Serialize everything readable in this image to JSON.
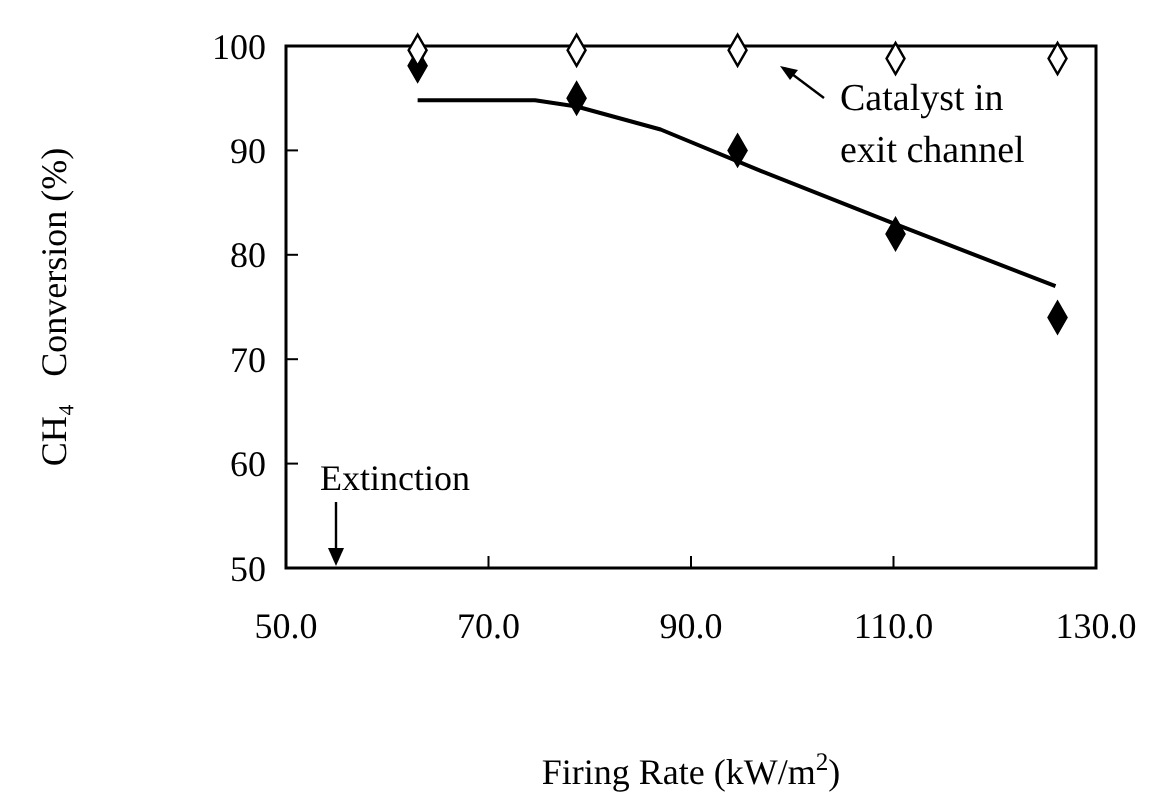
{
  "chart_data": {
    "type": "scatter",
    "xlabel": "Firing Rate (kW/m$^{2}$)",
    "ylabel": "CH₄   Conversion (%)",
    "xlim": [
      50,
      130
    ],
    "xticks": [
      {
        "value": 50,
        "label": "50.0"
      },
      {
        "value": 70,
        "label": "70.0"
      },
      {
        "value": 90,
        "label": "90.0"
      },
      {
        "value": 110,
        "label": "110.0"
      },
      {
        "value": 130,
        "label": "130.0"
      }
    ],
    "ylim": [
      50,
      100
    ],
    "yticks": [
      50,
      60,
      70,
      80,
      90,
      100
    ],
    "grid": false,
    "series": [
      {
        "marker": "diamond",
        "color": "#000000",
        "x": [
          63,
          78.7,
          94.6,
          110.2,
          126.2
        ],
        "values": [
          98.1,
          95,
          90,
          82,
          74
        ]
      },
      {
        "marker": "diamond",
        "color": "#ffffff",
        "x": [
          63,
          78.7,
          94.6,
          110.2,
          126.2
        ],
        "values": [
          99.6,
          99.6,
          99.6,
          98.8,
          98.8
        ]
      },
      {
        "type": "line",
        "line_style": "solid",
        "color": "#000000",
        "x": [
          63,
          74.6,
          78.7,
          87,
          97,
          110,
          126
        ],
        "values": [
          94.8,
          94.8,
          94.2,
          92,
          88,
          83,
          77
        ]
      }
    ],
    "annotations": [
      "Catalyst in\nexit channel",
      "Extinction"
    ]
  }
}
